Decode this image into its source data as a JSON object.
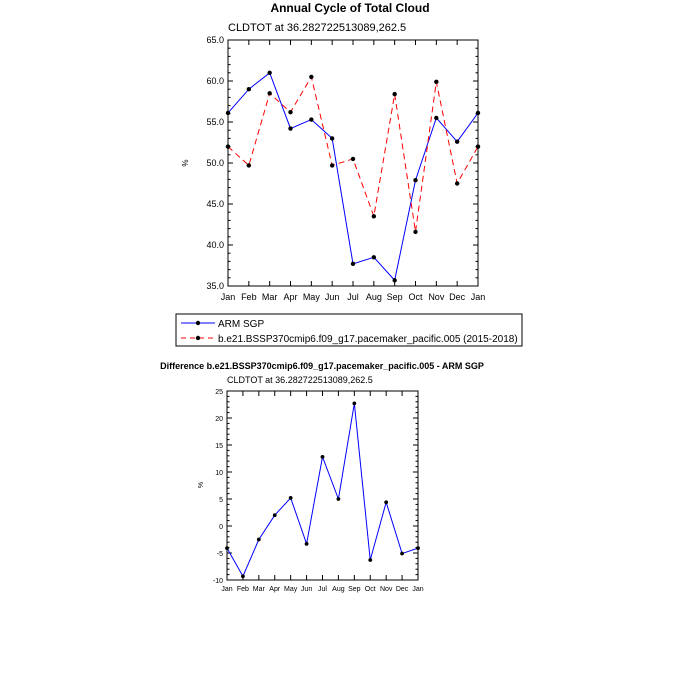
{
  "chart_data": [
    {
      "type": "line",
      "title": "Annual Cycle of Total Cloud",
      "subtitle": "CLDTOT at 36.282722513089,262.5",
      "xlabel": "",
      "ylabel": "%",
      "categories": [
        "Jan",
        "Feb",
        "Mar",
        "Apr",
        "May",
        "Jun",
        "Jul",
        "Aug",
        "Sep",
        "Oct",
        "Nov",
        "Dec",
        "Jan"
      ],
      "ylim": [
        35.0,
        65.0
      ],
      "yticks": [
        "35.0",
        "40.0",
        "45.0",
        "50.0",
        "55.0",
        "60.0",
        "65.0"
      ],
      "series": [
        {
          "name": "ARM SGP",
          "color": "#0000ff",
          "dash": "solid",
          "values": [
            56.1,
            59.0,
            61.0,
            54.2,
            55.3,
            53.0,
            37.7,
            38.5,
            35.7,
            47.9,
            55.5,
            52.6,
            56.1
          ]
        },
        {
          "name": "b.e21.BSSP370cmip6.f09_g17.pacemaker_pacific.005 (2015-2018)",
          "color": "#ff0000",
          "dash": "dashed",
          "values": [
            52.0,
            49.7,
            58.5,
            56.2,
            60.5,
            49.7,
            50.5,
            43.5,
            58.4,
            41.6,
            59.9,
            47.5,
            52.0
          ]
        }
      ],
      "legend": "bottom"
    },
    {
      "type": "line",
      "title": "Difference b.e21.BSSP370cmip6.f09_g17.pacemaker_pacific.005 - ARM SGP",
      "subtitle": "CLDTOT at 36.282722513089,262.5",
      "xlabel": "",
      "ylabel": "%",
      "categories": [
        "Jan",
        "Feb",
        "Mar",
        "Apr",
        "May",
        "Jun",
        "Jul",
        "Aug",
        "Sep",
        "Oct",
        "Nov",
        "Dec",
        "Jan"
      ],
      "ylim": [
        -10,
        25
      ],
      "yticks": [
        "-10",
        "-5",
        "0",
        "5",
        "10",
        "15",
        "20",
        "25"
      ],
      "series": [
        {
          "name": "Difference",
          "color": "#0000ff",
          "dash": "solid",
          "values": [
            -4.1,
            -9.3,
            -2.5,
            2.0,
            5.2,
            -3.3,
            12.8,
            5.0,
            22.7,
            -6.3,
            4.4,
            -5.1,
            -4.1
          ]
        }
      ]
    }
  ]
}
